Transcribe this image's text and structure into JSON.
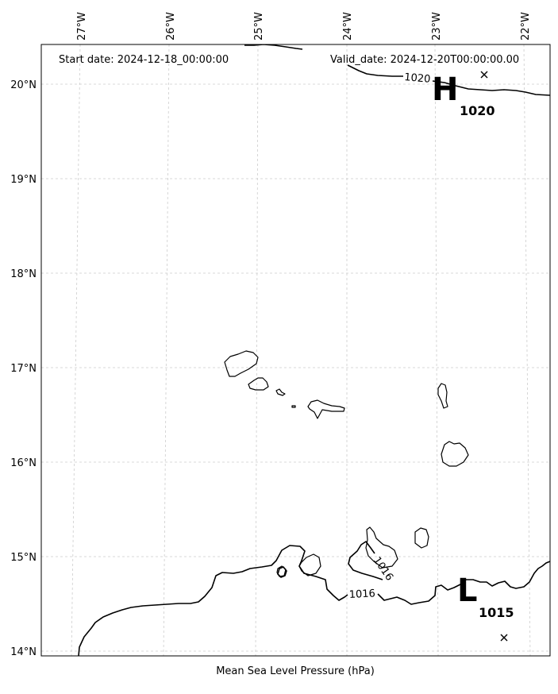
{
  "header": {
    "start_date": "Start date: 2024-12-18_00:00:00",
    "valid_date": "Valid_date: 2024-12-20T00:00:00.00"
  },
  "footer": {
    "caption": "Mean Sea Level Pressure (hPa)"
  },
  "longitude_labels": [
    "27°W",
    "26°W",
    "25°W",
    "24°W",
    "23°W",
    "22°W"
  ],
  "latitude_labels": [
    "20°N",
    "19°N",
    "18°N",
    "17°N",
    "16°N",
    "15°N",
    "14°N"
  ],
  "contours": {
    "upper_label": "1020",
    "lower_label": "1016",
    "mid_label": "1016"
  },
  "pressure_centers": {
    "high": {
      "letter": "H",
      "value": "1020"
    },
    "low": {
      "letter": "L",
      "value": "1015"
    }
  },
  "markers": {
    "center_marker_icon": "x-mark-icon"
  },
  "colors": {
    "coast": "#000000",
    "contour": "#000000",
    "grid": "#cccccc",
    "frame": "#000000"
  }
}
